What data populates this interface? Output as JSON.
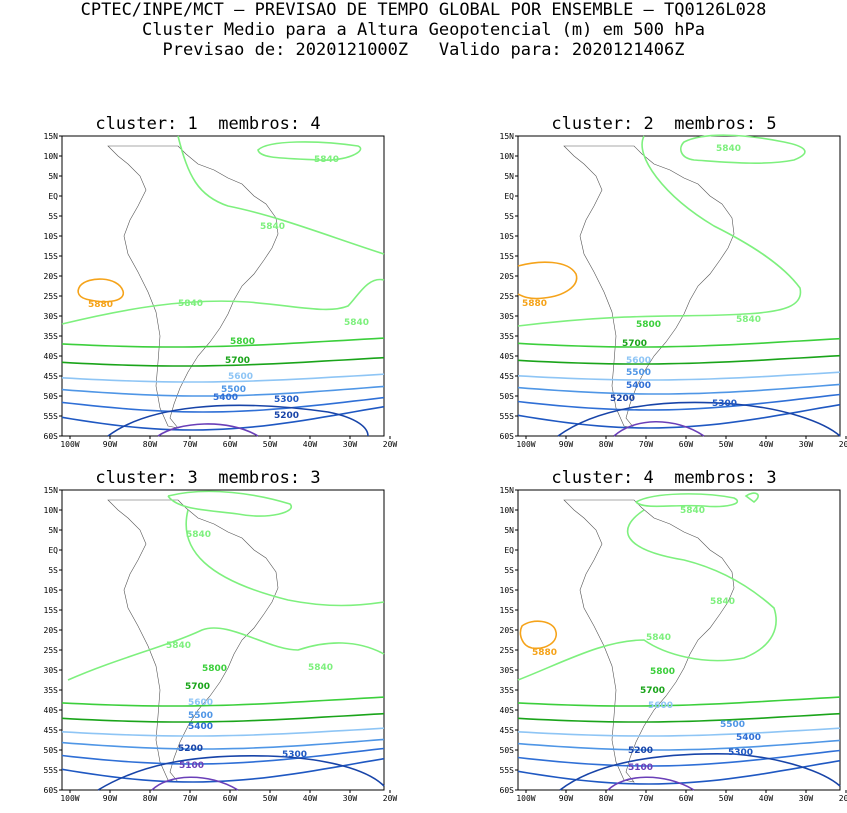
{
  "header": {
    "line1": "CPTEC/INPE/MCT — PREVISAO DE TEMPO GLOBAL POR ENSEMBLE — TQ0126L028",
    "line2": "Cluster Medio para a Altura Geopotencial (m) em 500 hPa",
    "line3": "Previsao de: 2020121000Z   Valido para: 2020121406Z"
  },
  "axes": {
    "lat_labels": [
      "15N",
      "10N",
      "5N",
      "EQ",
      "5S",
      "10S",
      "15S",
      "20S",
      "25S",
      "30S",
      "35S",
      "40S",
      "45S",
      "50S",
      "55S",
      "60S"
    ],
    "lon_labels": [
      "100W",
      "90W",
      "80W",
      "70W",
      "60W",
      "50W",
      "40W",
      "30W",
      "20W"
    ]
  },
  "contour_colors": {
    "5880": "#f5a31a",
    "5840": "#7ef07e",
    "5800": "#3ccf3c",
    "5700": "#1aa41a",
    "5600": "#8ec5f5",
    "5500": "#4f96e6",
    "5400": "#2f6fd6",
    "5300": "#1f58c2",
    "5200": "#1844a8",
    "5100": "#6a3fb8"
  },
  "panels": [
    {
      "title": "cluster: 1  membros: 4",
      "labels": [
        {
          "text": "5840",
          "level": "5840"
        },
        {
          "text": "5840",
          "level": "5840"
        },
        {
          "text": "5880",
          "level": "5880"
        },
        {
          "text": "5840",
          "level": "5840"
        },
        {
          "text": "5840",
          "level": "5840"
        },
        {
          "text": "5800",
          "level": "5800"
        },
        {
          "text": "5700",
          "level": "5700"
        },
        {
          "text": "5600",
          "level": "5600"
        },
        {
          "text": "5500",
          "level": "5500"
        },
        {
          "text": "5400",
          "level": "5400"
        },
        {
          "text": "5300",
          "level": "5300"
        },
        {
          "text": "5200",
          "level": "5200"
        }
      ]
    },
    {
      "title": "cluster: 2  membros: 5",
      "labels": [
        {
          "text": "5840",
          "level": "5840"
        },
        {
          "text": "5880",
          "level": "5880"
        },
        {
          "text": "5800",
          "level": "5800"
        },
        {
          "text": "5840",
          "level": "5840"
        },
        {
          "text": "5700",
          "level": "5700"
        },
        {
          "text": "5600",
          "level": "5600"
        },
        {
          "text": "5500",
          "level": "5500"
        },
        {
          "text": "5400",
          "level": "5400"
        },
        {
          "text": "5200",
          "level": "5200"
        },
        {
          "text": "5300",
          "level": "5300"
        }
      ]
    },
    {
      "title": "cluster: 3  membros: 3",
      "labels": [
        {
          "text": "5840",
          "level": "5840"
        },
        {
          "text": "5840",
          "level": "5840"
        },
        {
          "text": "5840",
          "level": "5840"
        },
        {
          "text": "5800",
          "level": "5800"
        },
        {
          "text": "5700",
          "level": "5700"
        },
        {
          "text": "5600",
          "level": "5600"
        },
        {
          "text": "5500",
          "level": "5500"
        },
        {
          "text": "5400",
          "level": "5400"
        },
        {
          "text": "5200",
          "level": "5200"
        },
        {
          "text": "5300",
          "level": "5300"
        },
        {
          "text": "5100",
          "level": "5100"
        }
      ]
    },
    {
      "title": "cluster: 4  membros: 3",
      "labels": [
        {
          "text": "5840",
          "level": "5840"
        },
        {
          "text": "5840",
          "level": "5840"
        },
        {
          "text": "5880",
          "level": "5880"
        },
        {
          "text": "5840",
          "level": "5840"
        },
        {
          "text": "5800",
          "level": "5800"
        },
        {
          "text": "5700",
          "level": "5700"
        },
        {
          "text": "5600",
          "level": "5600"
        },
        {
          "text": "5500",
          "level": "5500"
        },
        {
          "text": "5400",
          "level": "5400"
        },
        {
          "text": "5200",
          "level": "5200"
        },
        {
          "text": "5300",
          "level": "5300"
        },
        {
          "text": "5100",
          "level": "5100"
        }
      ]
    }
  ]
}
